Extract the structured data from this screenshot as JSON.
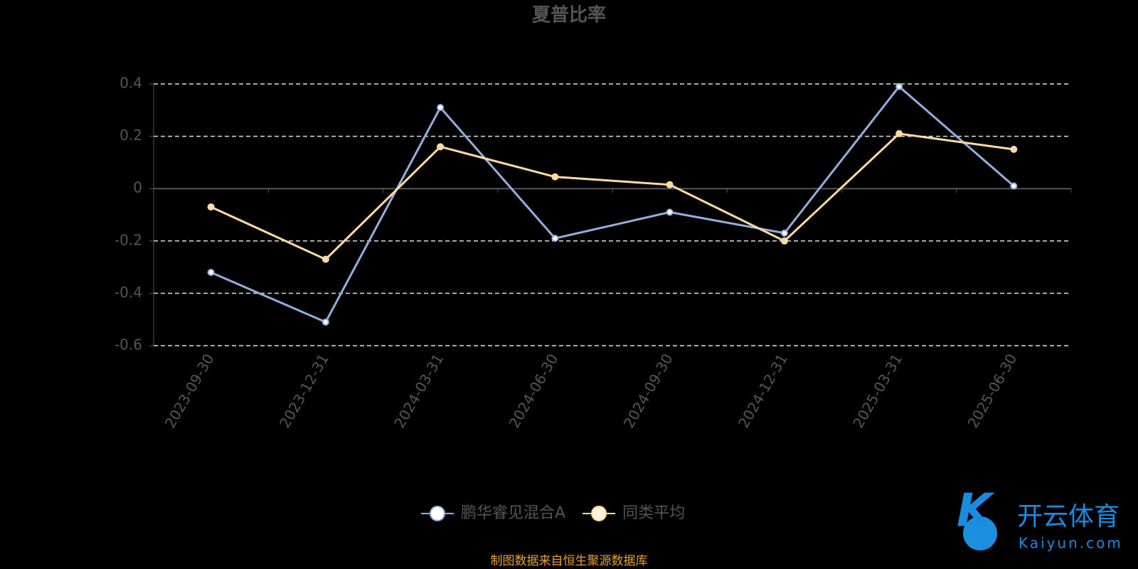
{
  "chart_data": {
    "type": "line",
    "title": "夏普比率",
    "categories": [
      "2023-09-30",
      "2023-12-31",
      "2024-03-31",
      "2024-06-30",
      "2024-09-30",
      "2024-12-31",
      "2025-03-31",
      "2025-06-30"
    ],
    "series": [
      {
        "name": "鹏华睿见混合A",
        "color": "#93aedc",
        "values": [
          -0.32,
          -0.51,
          0.31,
          -0.19,
          -0.09,
          -0.17,
          0.39,
          0.01
        ]
      },
      {
        "name": "同类平均",
        "color": "#ffdc9e",
        "values": [
          -0.07,
          -0.27,
          0.16,
          0.045,
          0.015,
          -0.2,
          0.21,
          0.15
        ]
      }
    ],
    "ylim": [
      -0.6,
      0.4
    ],
    "yticks": [
      -0.6,
      -0.4,
      -0.2,
      0,
      0.2,
      0.4
    ],
    "grid": true
  },
  "source": "制图数据来自恒生聚源数据库",
  "watermark": {
    "brand": "开云体育",
    "site": "Kaiyun.com"
  }
}
